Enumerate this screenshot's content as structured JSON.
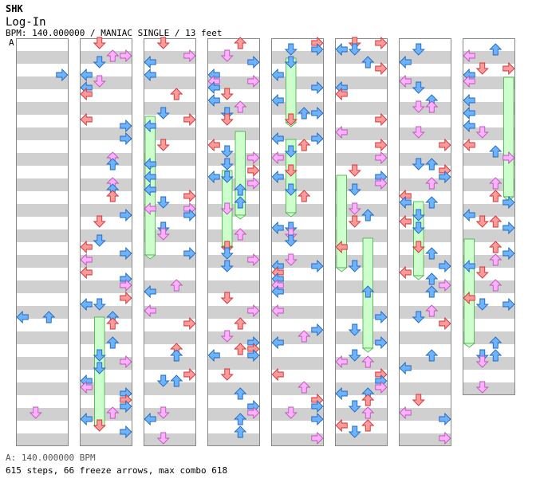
{
  "header": {
    "artist": "SHK",
    "title": "Log-In",
    "info": "BPM: 140.000000 / MANIAC SINGLE / 13 feet"
  },
  "bpm_marker": "A",
  "footer": {
    "bpm_line": "A: 140.000000 BPM",
    "stats_line": "615 steps, 66 freeze arrows, max combo 618"
  },
  "colors": {
    "red_arrow": "#ff9a9a",
    "pink_arrow": "#ffb0ff",
    "blue_arrow": "#6cb4ff",
    "green_arrow": "#a8f0a8",
    "freeze_body": "#ccffcc",
    "stripe": "#d0d0d0"
  },
  "chart": {
    "columns": 8,
    "measures_per_column": 8,
    "lanes": [
      "left",
      "down",
      "up",
      "right"
    ],
    "seed": 20240521
  }
}
